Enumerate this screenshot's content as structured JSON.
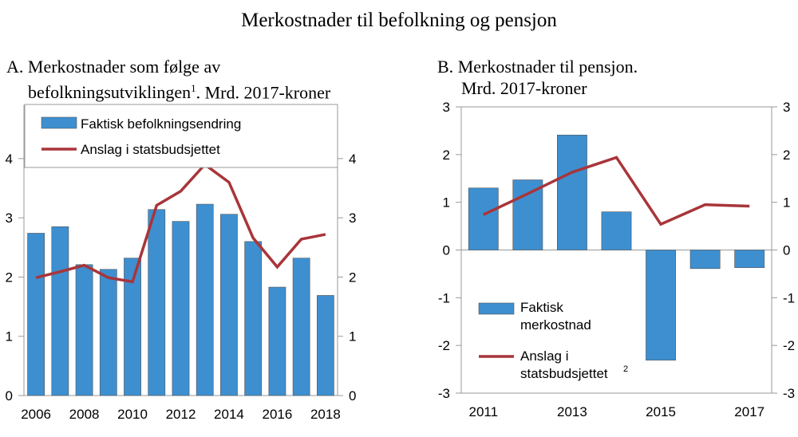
{
  "title": "Merkostnader til befolkning og pensjon",
  "chart_data": [
    {
      "type": "bar+line",
      "panel": "A.",
      "title_line1": "Merkostnader som følge av",
      "title_line2": "befolkningsutviklingen",
      "title_sup": "1",
      "title_rest": ". Mrd. 2017-kroner",
      "categories": [
        2006,
        2007,
        2008,
        2009,
        2010,
        2011,
        2012,
        2013,
        2014,
        2015,
        2016,
        2017,
        2018
      ],
      "series": [
        {
          "name": "Faktisk befolkningsendring",
          "type": "bar",
          "color": "#3d8fd0",
          "values": [
            2.74,
            2.85,
            2.21,
            2.13,
            2.32,
            3.14,
            2.94,
            3.23,
            3.06,
            2.6,
            1.83,
            2.32,
            1.69
          ]
        },
        {
          "name": "Anslag i statsbudsjettet",
          "type": "line",
          "color": "#a8353a",
          "values": [
            1.99,
            2.09,
            2.2,
            1.99,
            1.92,
            3.21,
            3.45,
            3.9,
            3.6,
            2.66,
            2.17,
            2.64,
            2.72
          ]
        }
      ],
      "ylim": [
        0,
        4.9
      ],
      "yticks": [
        "0",
        "1",
        "2",
        "3",
        "4"
      ],
      "xticks": [
        "2006",
        "2008",
        "2010",
        "2012",
        "2014",
        "2016",
        "2018"
      ],
      "legend": "top-left"
    },
    {
      "type": "bar+line",
      "panel": "B.",
      "title_line1": "Merkostnader til pensjon.",
      "title_line2": "Mrd. 2017-kroner",
      "categories": [
        2011,
        2012,
        2013,
        2014,
        2015,
        2016,
        2017
      ],
      "series": [
        {
          "name": "Faktisk merkostnad",
          "name_lines": [
            "Faktisk",
            "merkostnad"
          ],
          "type": "bar",
          "color": "#3d8fd0",
          "values": [
            1.3,
            1.47,
            2.41,
            0.8,
            -2.31,
            -0.39,
            -0.37
          ]
        },
        {
          "name": "Anslag i statsbudsjettet",
          "name_lines": [
            "Anslag i",
            "statsbudsjettet"
          ],
          "sup": "2",
          "type": "line",
          "color": "#a8353a",
          "values": [
            0.74,
            1.18,
            1.63,
            1.94,
            0.54,
            0.95,
            0.92
          ]
        }
      ],
      "ylim": [
        -3,
        3
      ],
      "yticks": [
        "-3",
        "-2",
        "-1",
        "0",
        "1",
        "2",
        "3"
      ],
      "xticks": [
        "2011",
        "2013",
        "2015",
        "2017"
      ],
      "legend": "bottom-left"
    }
  ]
}
